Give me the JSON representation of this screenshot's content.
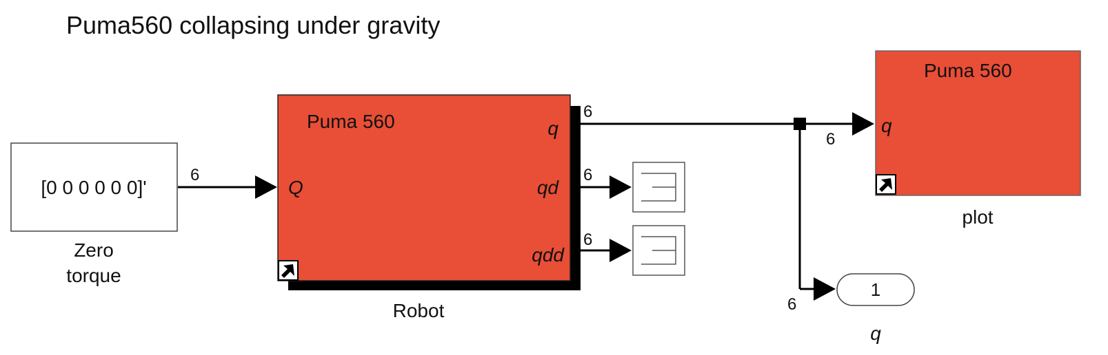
{
  "title": "Puma560 collapsing under gravity",
  "blocks": {
    "constant": {
      "value": "[0 0 0 0 0 0]'",
      "label_line1": "Zero",
      "label_line2": "torque"
    },
    "robot": {
      "title": "Puma 560",
      "input_port": "Q",
      "output_port_q": "q",
      "output_port_qd": "qd",
      "output_port_qdd": "qdd",
      "label": "Robot"
    },
    "plot": {
      "title": "Puma 560",
      "input_port": "q",
      "label": "plot"
    },
    "outport": {
      "value": "1",
      "label": "q"
    }
  },
  "signals": {
    "torque_width": "6",
    "q_width": "6",
    "qd_width": "6",
    "qdd_width": "6",
    "plot_in_width": "6",
    "outport_in_width": "6"
  },
  "colors": {
    "block_fill": "#e94e36",
    "line": "#000000",
    "background": "#ffffff"
  }
}
